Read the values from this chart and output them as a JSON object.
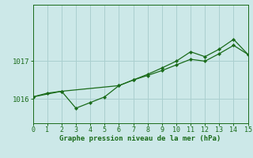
{
  "title": "Graphe pression niveau de la mer (hPa)",
  "background_color": "#cce8e8",
  "line_color": "#1a6b1a",
  "grid_color": "#aacfcf",
  "x_min": 0,
  "x_max": 15,
  "y_min": 1015.35,
  "y_max": 1018.5,
  "yticks": [
    1016,
    1017
  ],
  "xticks": [
    0,
    1,
    2,
    3,
    4,
    5,
    6,
    7,
    8,
    9,
    10,
    11,
    12,
    13,
    14,
    15
  ],
  "series1_x": [
    0,
    1,
    2,
    3,
    4,
    5,
    6,
    7,
    8,
    9,
    10,
    11,
    12,
    13,
    14,
    15
  ],
  "series1_y": [
    1016.05,
    1016.15,
    1016.2,
    1015.75,
    1015.9,
    1016.05,
    1016.35,
    1016.5,
    1016.65,
    1016.82,
    1017.0,
    1017.25,
    1017.12,
    1017.32,
    1017.58,
    1017.18
  ],
  "series2_x": [
    0,
    2,
    6,
    7,
    8,
    9,
    10,
    11,
    12,
    13,
    14,
    15
  ],
  "series2_y": [
    1016.05,
    1016.2,
    1016.35,
    1016.5,
    1016.62,
    1016.75,
    1016.9,
    1017.05,
    1017.0,
    1017.2,
    1017.42,
    1017.18
  ],
  "xlabel_fontsize": 6.5,
  "ytick_fontsize": 6.5,
  "xtick_fontsize": 6.0
}
